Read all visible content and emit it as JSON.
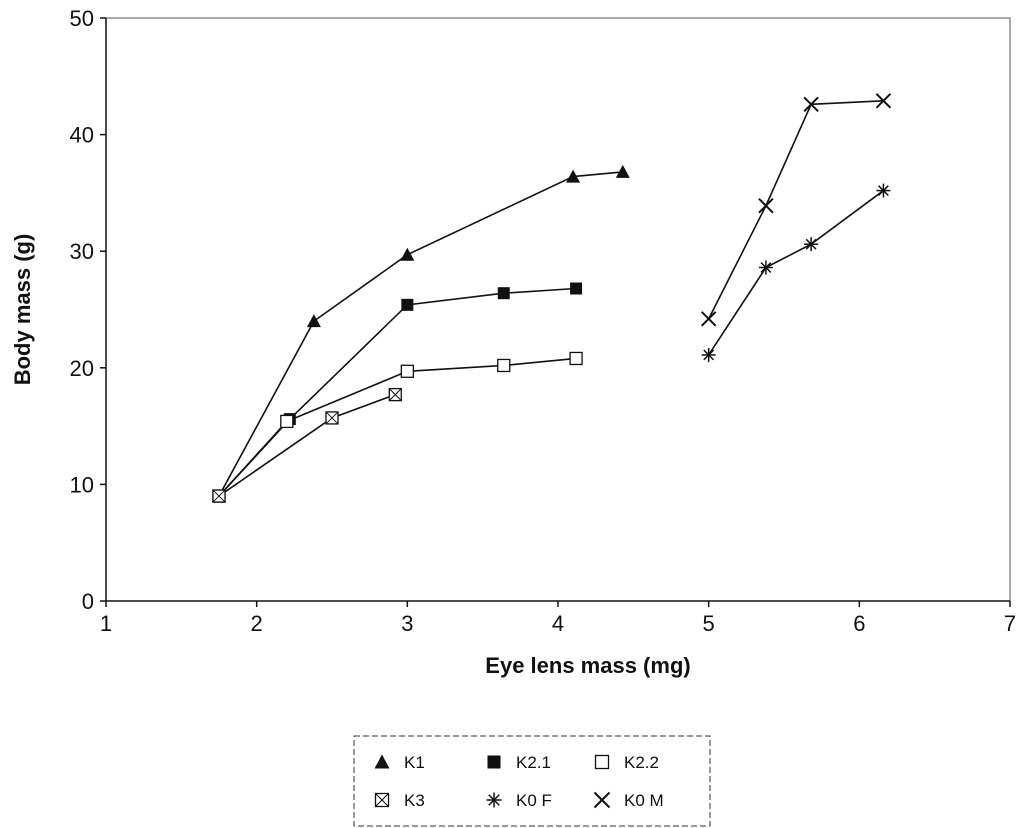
{
  "chart_data": {
    "type": "line",
    "title": "",
    "xlabel": "Eye lens mass (mg)",
    "ylabel": "Body mass (g)",
    "xlim": [
      1,
      7
    ],
    "ylim": [
      0,
      50
    ],
    "xticks": [
      "1",
      "2",
      "3",
      "4",
      "5",
      "6",
      "7"
    ],
    "yticks": [
      "0",
      "10",
      "20",
      "30",
      "40",
      "50"
    ],
    "grid": false,
    "legend_position": "bottom-center",
    "series": [
      {
        "name": "K1",
        "marker": "filled-triangle",
        "x": [
          1.75,
          2.38,
          3.0,
          4.1,
          4.43
        ],
        "y": [
          9,
          24,
          29.7,
          36.4,
          36.8
        ]
      },
      {
        "name": "K2.1",
        "marker": "filled-square",
        "x": [
          1.75,
          2.22,
          3.0,
          3.64,
          4.12
        ],
        "y": [
          9,
          15.6,
          25.4,
          26.4,
          26.8
        ]
      },
      {
        "name": "K2.2",
        "marker": "open-square",
        "x": [
          1.75,
          2.2,
          3.0,
          3.64,
          4.12
        ],
        "y": [
          9,
          15.4,
          19.7,
          20.2,
          20.8
        ]
      },
      {
        "name": "K3",
        "marker": "crossed-square",
        "x": [
          1.75,
          2.5,
          2.92
        ],
        "y": [
          9,
          15.7,
          17.7
        ]
      },
      {
        "name": "K0 F",
        "marker": "asterisk",
        "x": [
          5.0,
          5.38,
          5.68,
          6.16
        ],
        "y": [
          21.1,
          28.6,
          30.6,
          35.2
        ]
      },
      {
        "name": "K0 M",
        "marker": "x-cross",
        "x": [
          5.0,
          5.38,
          5.68,
          6.16
        ],
        "y": [
          24.2,
          33.9,
          42.6,
          42.9
        ]
      }
    ]
  }
}
